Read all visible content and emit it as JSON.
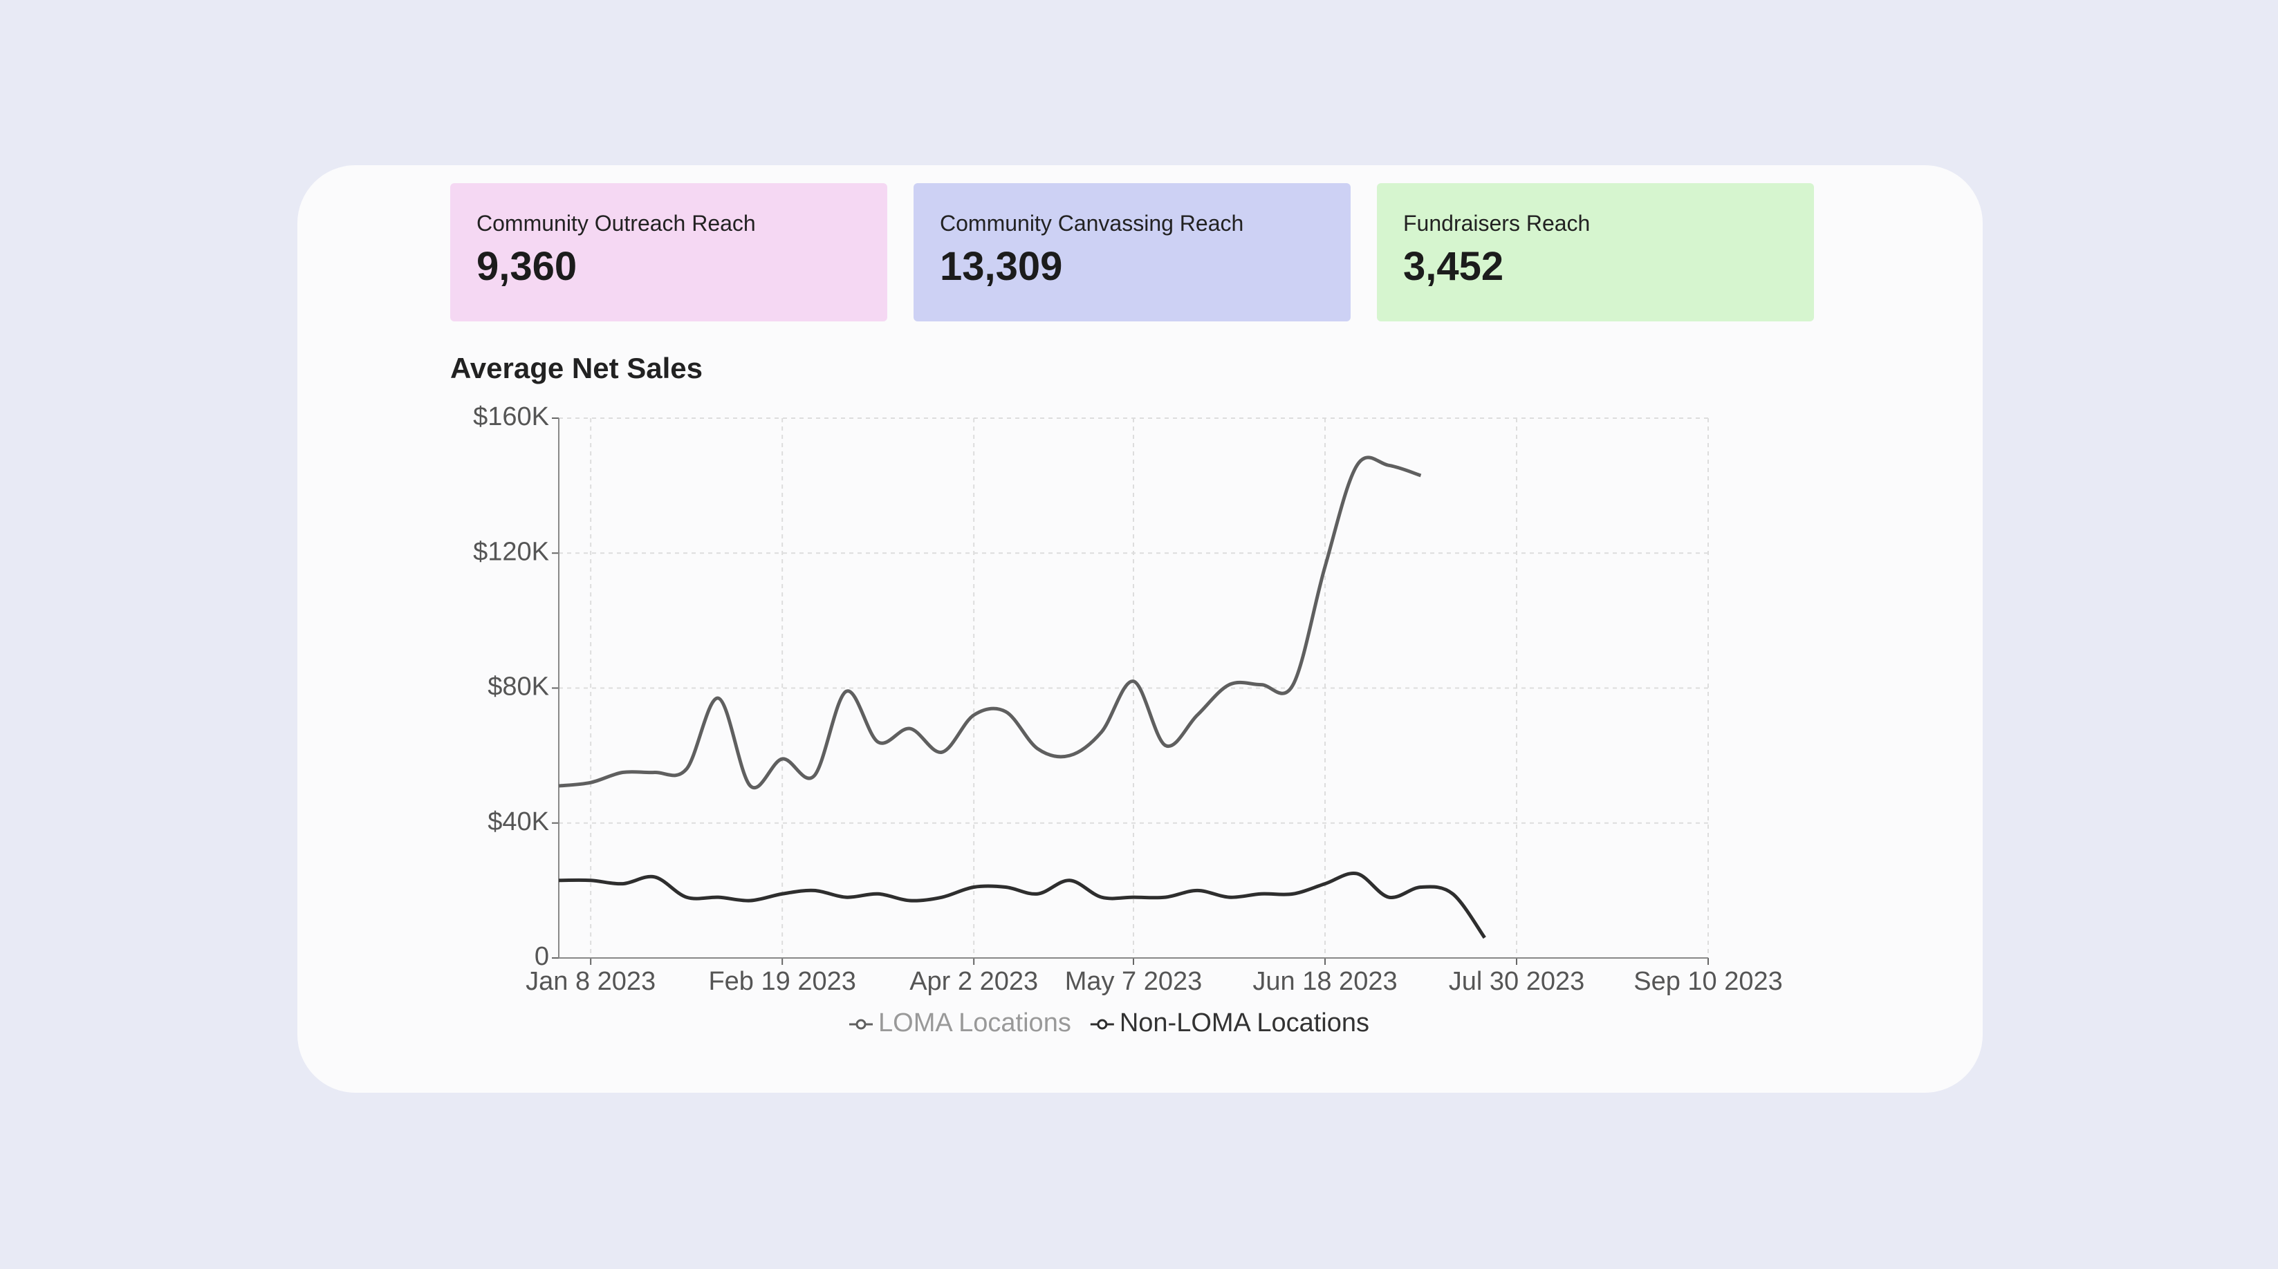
{
  "kpis": [
    {
      "label": "Community Outreach Reach",
      "value": "9,360"
    },
    {
      "label": "Community Canvassing Reach",
      "value": "13,309"
    },
    {
      "label": "Fundraisers Reach",
      "value": "3,452"
    }
  ],
  "chart_data": {
    "type": "line",
    "title": "Average Net Sales",
    "x": [
      "2023-01-01",
      "2023-01-08",
      "2023-01-15",
      "2023-01-22",
      "2023-01-29",
      "2023-02-05",
      "2023-02-12",
      "2023-02-19",
      "2023-02-26",
      "2023-03-05",
      "2023-03-12",
      "2023-03-19",
      "2023-03-26",
      "2023-04-02",
      "2023-04-09",
      "2023-04-16",
      "2023-04-23",
      "2023-04-30",
      "2023-05-07",
      "2023-05-14",
      "2023-05-21",
      "2023-05-28",
      "2023-06-04",
      "2023-06-11",
      "2023-06-18",
      "2023-06-25",
      "2023-07-02",
      "2023-07-09",
      "2023-07-16",
      "2023-07-23"
    ],
    "series": [
      {
        "name": "LOMA Locations",
        "color": "#5f5f5f",
        "values": [
          51000,
          52000,
          55000,
          55000,
          56000,
          77000,
          51000,
          59000,
          54000,
          79000,
          64000,
          68000,
          61000,
          72000,
          73000,
          62000,
          60000,
          67000,
          82000,
          63000,
          72000,
          81000,
          81000,
          81000,
          116000,
          146000,
          146000,
          143000,
          null,
          null
        ]
      },
      {
        "name": "Non-LOMA Locations",
        "color": "#2e2e2e",
        "values": [
          23000,
          23000,
          22000,
          24000,
          18000,
          18000,
          17000,
          19000,
          20000,
          18000,
          19000,
          17000,
          18000,
          21000,
          21000,
          19000,
          23000,
          18000,
          18000,
          18000,
          20000,
          18000,
          19000,
          19000,
          22000,
          25000,
          18000,
          21000,
          19000,
          6000
        ]
      }
    ],
    "xlim": [
      "2023-01-01",
      "2023-09-10"
    ],
    "xticks": [
      {
        "value": "2023-01-08",
        "label": "Jan 8 2023"
      },
      {
        "value": "2023-02-19",
        "label": "Feb 19 2023"
      },
      {
        "value": "2023-04-02",
        "label": "Apr 2 2023"
      },
      {
        "value": "2023-05-07",
        "label": "May 7 2023"
      },
      {
        "value": "2023-06-18",
        "label": "Jun 18 2023"
      },
      {
        "value": "2023-07-30",
        "label": "Jul 30 2023"
      },
      {
        "value": "2023-09-10",
        "label": "Sep 10 2023"
      }
    ],
    "ylim": [
      0,
      160000
    ],
    "yticks": [
      0,
      {
        "value": 40000,
        "label": "$40K"
      },
      {
        "value": 80000,
        "label": "$80K"
      },
      {
        "value": 120000,
        "label": "$120K"
      },
      {
        "value": 160000,
        "label": "$160K"
      }
    ],
    "grid": true,
    "legend": "bottom"
  }
}
